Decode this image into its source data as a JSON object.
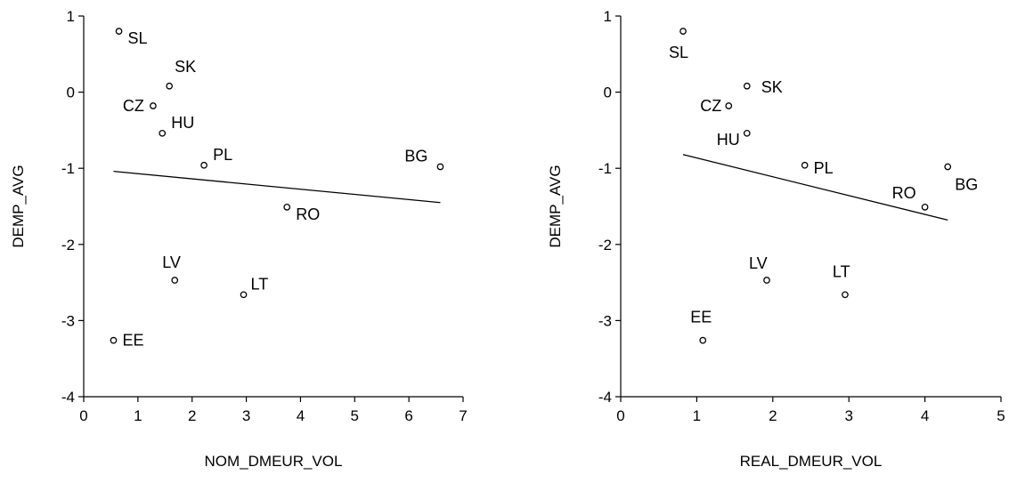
{
  "chart_data": [
    {
      "type": "scatter",
      "xlabel": "NOM_DMEUR_VOL",
      "ylabel": "DEMP_AVG",
      "xlim": [
        0,
        7
      ],
      "ylim": [
        -4,
        1
      ],
      "xticks": [
        "0",
        "1",
        "2",
        "3",
        "4",
        "5",
        "6",
        "7"
      ],
      "yticks": [
        "1",
        "0",
        "-1",
        "-2",
        "-3",
        "-4"
      ],
      "grid": false,
      "points": [
        {
          "label": "SL",
          "x": 0.65,
          "y": 0.8
        },
        {
          "label": "SK",
          "x": 1.58,
          "y": 0.08
        },
        {
          "label": "CZ",
          "x": 1.28,
          "y": -0.18
        },
        {
          "label": "HU",
          "x": 1.45,
          "y": -0.54
        },
        {
          "label": "PL",
          "x": 2.22,
          "y": -0.96
        },
        {
          "label": "BG",
          "x": 6.58,
          "y": -0.98
        },
        {
          "label": "RO",
          "x": 3.75,
          "y": -1.51
        },
        {
          "label": "LV",
          "x": 1.68,
          "y": -2.47
        },
        {
          "label": "LT",
          "x": 2.95,
          "y": -2.66
        },
        {
          "label": "EE",
          "x": 0.55,
          "y": -3.26
        }
      ],
      "fit_line": {
        "x": [
          0.55,
          6.58
        ],
        "y": [
          -1.04,
          -1.45
        ]
      }
    },
    {
      "type": "scatter",
      "xlabel": "REAL_DMEUR_VOL",
      "ylabel": "DEMP_AVG",
      "xlim": [
        0,
        5
      ],
      "ylim": [
        -4,
        1
      ],
      "xticks": [
        "0",
        "1",
        "2",
        "3",
        "4",
        "5"
      ],
      "yticks": [
        "1",
        "0",
        "-1",
        "-2",
        "-3",
        "-4"
      ],
      "grid": false,
      "points": [
        {
          "label": "SL",
          "x": 0.82,
          "y": 0.8
        },
        {
          "label": "SK",
          "x": 1.66,
          "y": 0.08
        },
        {
          "label": "CZ",
          "x": 1.42,
          "y": -0.18
        },
        {
          "label": "HU",
          "x": 1.66,
          "y": -0.54
        },
        {
          "label": "PL",
          "x": 2.42,
          "y": -0.96
        },
        {
          "label": "BG",
          "x": 4.3,
          "y": -0.98
        },
        {
          "label": "RO",
          "x": 4.0,
          "y": -1.51
        },
        {
          "label": "LV",
          "x": 1.92,
          "y": -2.47
        },
        {
          "label": "LT",
          "x": 2.95,
          "y": -2.66
        },
        {
          "label": "EE",
          "x": 1.08,
          "y": -3.26
        }
      ],
      "fit_line": {
        "x": [
          0.82,
          4.3
        ],
        "y": [
          -0.82,
          -1.68
        ]
      }
    }
  ]
}
